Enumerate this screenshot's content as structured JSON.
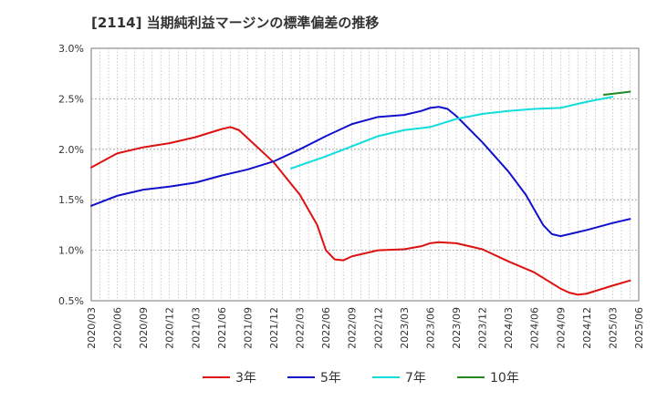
{
  "chart_data": {
    "type": "line",
    "title": "[2114]  当期純利益マージンの標準偏差の推移",
    "xlabel": "",
    "ylabel": "",
    "x_labels": [
      "2020/03",
      "2020/06",
      "2020/09",
      "2020/12",
      "2021/03",
      "2021/06",
      "2021/09",
      "2021/12",
      "2022/03",
      "2022/06",
      "2022/09",
      "2022/12",
      "2023/03",
      "2023/06",
      "2023/09",
      "2023/12",
      "2024/03",
      "2024/06",
      "2024/09",
      "2024/12",
      "2025/03",
      "2025/06"
    ],
    "y_ticks": [
      "0.5%",
      "1.0%",
      "1.5%",
      "2.0%",
      "2.5%",
      "3.0%"
    ],
    "ylim": [
      0.5,
      3.0
    ],
    "grid": true,
    "legend_position": "bottom",
    "series": [
      {
        "name": "3年",
        "color": "#dd1111",
        "points": [
          [
            "2020/03",
            1.82
          ],
          [
            "2020/06",
            1.96
          ],
          [
            "2020/09",
            2.02
          ],
          [
            "2020/12",
            2.06
          ],
          [
            "2021/03",
            2.12
          ],
          [
            "2021/06",
            2.2
          ],
          [
            "2021/07",
            2.22
          ],
          [
            "2021/08",
            2.19
          ],
          [
            "2021/09",
            2.11
          ],
          [
            "2021/12",
            1.87
          ],
          [
            "2022/03",
            1.55
          ],
          [
            "2022/05",
            1.25
          ],
          [
            "2022/06",
            1.0
          ],
          [
            "2022/07",
            0.91
          ],
          [
            "2022/08",
            0.9
          ],
          [
            "2022/09",
            0.94
          ],
          [
            "2022/12",
            1.0
          ],
          [
            "2023/03",
            1.01
          ],
          [
            "2023/05",
            1.04
          ],
          [
            "2023/06",
            1.07
          ],
          [
            "2023/07",
            1.08
          ],
          [
            "2023/09",
            1.07
          ],
          [
            "2023/12",
            1.01
          ],
          [
            "2024/03",
            0.89
          ],
          [
            "2024/06",
            0.78
          ],
          [
            "2024/09",
            0.62
          ],
          [
            "2024/10",
            0.58
          ],
          [
            "2024/11",
            0.56
          ],
          [
            "2024/12",
            0.57
          ],
          [
            "2025/03",
            0.65
          ],
          [
            "2025/05",
            0.7
          ]
        ]
      },
      {
        "name": "5年",
        "color": "#1111cc",
        "points": [
          [
            "2020/03",
            1.44
          ],
          [
            "2020/06",
            1.54
          ],
          [
            "2020/09",
            1.6
          ],
          [
            "2020/12",
            1.63
          ],
          [
            "2021/03",
            1.67
          ],
          [
            "2021/06",
            1.74
          ],
          [
            "2021/09",
            1.8
          ],
          [
            "2021/12",
            1.88
          ],
          [
            "2022/03",
            2.0
          ],
          [
            "2022/06",
            2.13
          ],
          [
            "2022/09",
            2.25
          ],
          [
            "2022/12",
            2.32
          ],
          [
            "2023/03",
            2.34
          ],
          [
            "2023/05",
            2.38
          ],
          [
            "2023/06",
            2.41
          ],
          [
            "2023/07",
            2.42
          ],
          [
            "2023/08",
            2.4
          ],
          [
            "2023/09",
            2.33
          ],
          [
            "2023/12",
            2.07
          ],
          [
            "2024/03",
            1.78
          ],
          [
            "2024/05",
            1.55
          ],
          [
            "2024/06",
            1.4
          ],
          [
            "2024/07",
            1.25
          ],
          [
            "2024/08",
            1.16
          ],
          [
            "2024/09",
            1.14
          ],
          [
            "2024/12",
            1.2
          ],
          [
            "2025/03",
            1.27
          ],
          [
            "2025/05",
            1.31
          ]
        ]
      },
      {
        "name": "7年",
        "color": "#11dddd",
        "points": [
          [
            "2022/02",
            1.81
          ],
          [
            "2022/06",
            1.93
          ],
          [
            "2022/09",
            2.03
          ],
          [
            "2022/12",
            2.13
          ],
          [
            "2023/03",
            2.19
          ],
          [
            "2023/06",
            2.22
          ],
          [
            "2023/09",
            2.3
          ],
          [
            "2023/12",
            2.35
          ],
          [
            "2024/03",
            2.38
          ],
          [
            "2024/06",
            2.4
          ],
          [
            "2024/09",
            2.41
          ],
          [
            "2024/12",
            2.47
          ],
          [
            "2025/03",
            2.52
          ]
        ]
      },
      {
        "name": "10年",
        "color": "#228822",
        "points": [
          [
            "2025/02",
            2.54
          ],
          [
            "2025/05",
            2.57
          ]
        ]
      }
    ]
  }
}
